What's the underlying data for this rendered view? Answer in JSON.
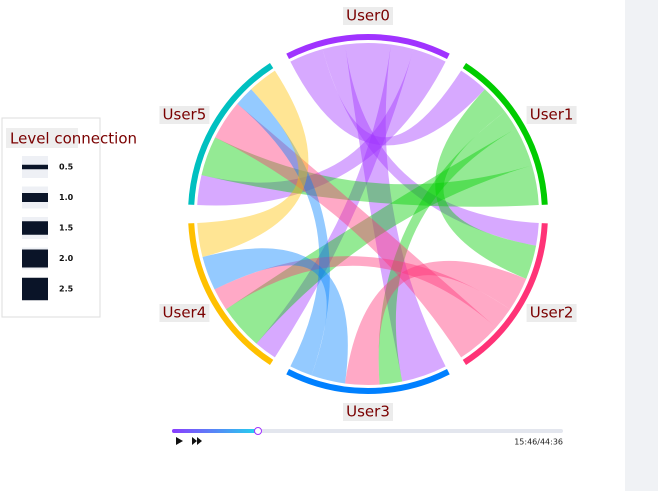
{
  "chart_data": {
    "type": "chord",
    "nodes": [
      {
        "name": "User0",
        "color": "#a033ff"
      },
      {
        "name": "User1",
        "color": "#00cc00"
      },
      {
        "name": "User2",
        "color": "#ff3377"
      },
      {
        "name": "User3",
        "color": "#0080ff"
      },
      {
        "name": "User4",
        "color": "#ffc000"
      },
      {
        "name": "User5",
        "color": "#00c0c0"
      }
    ],
    "links": [
      {
        "source": 0,
        "target": 1,
        "value": 1.5
      },
      {
        "source": 0,
        "target": 2,
        "value": 1
      },
      {
        "source": 0,
        "target": 3,
        "value": 2
      },
      {
        "source": 0,
        "target": 4,
        "value": 1
      },
      {
        "source": 0,
        "target": 5,
        "value": 1.5
      },
      {
        "source": 1,
        "target": 2,
        "value": 1.5
      },
      {
        "source": 1,
        "target": 3,
        "value": 1
      },
      {
        "source": 1,
        "target": 4,
        "value": 2
      },
      {
        "source": 1,
        "target": 5,
        "value": 2
      },
      {
        "source": 2,
        "target": 3,
        "value": 1.5
      },
      {
        "source": 2,
        "target": 4,
        "value": 1
      },
      {
        "source": 2,
        "target": 5,
        "value": 2
      },
      {
        "source": 3,
        "target": 4,
        "value": 1.5
      },
      {
        "source": 3,
        "target": 5,
        "value": 1
      },
      {
        "source": 4,
        "target": 5,
        "value": 1.5
      }
    ],
    "legend": {
      "title": "Level connection",
      "ticks": [
        0.5,
        {
          "value": 1,
          "label": "1.0"
        },
        1.5,
        {
          "value": 2,
          "label": "2.0"
        },
        2.5
      ]
    }
  },
  "player": {
    "time": "15:46/44:36"
  }
}
